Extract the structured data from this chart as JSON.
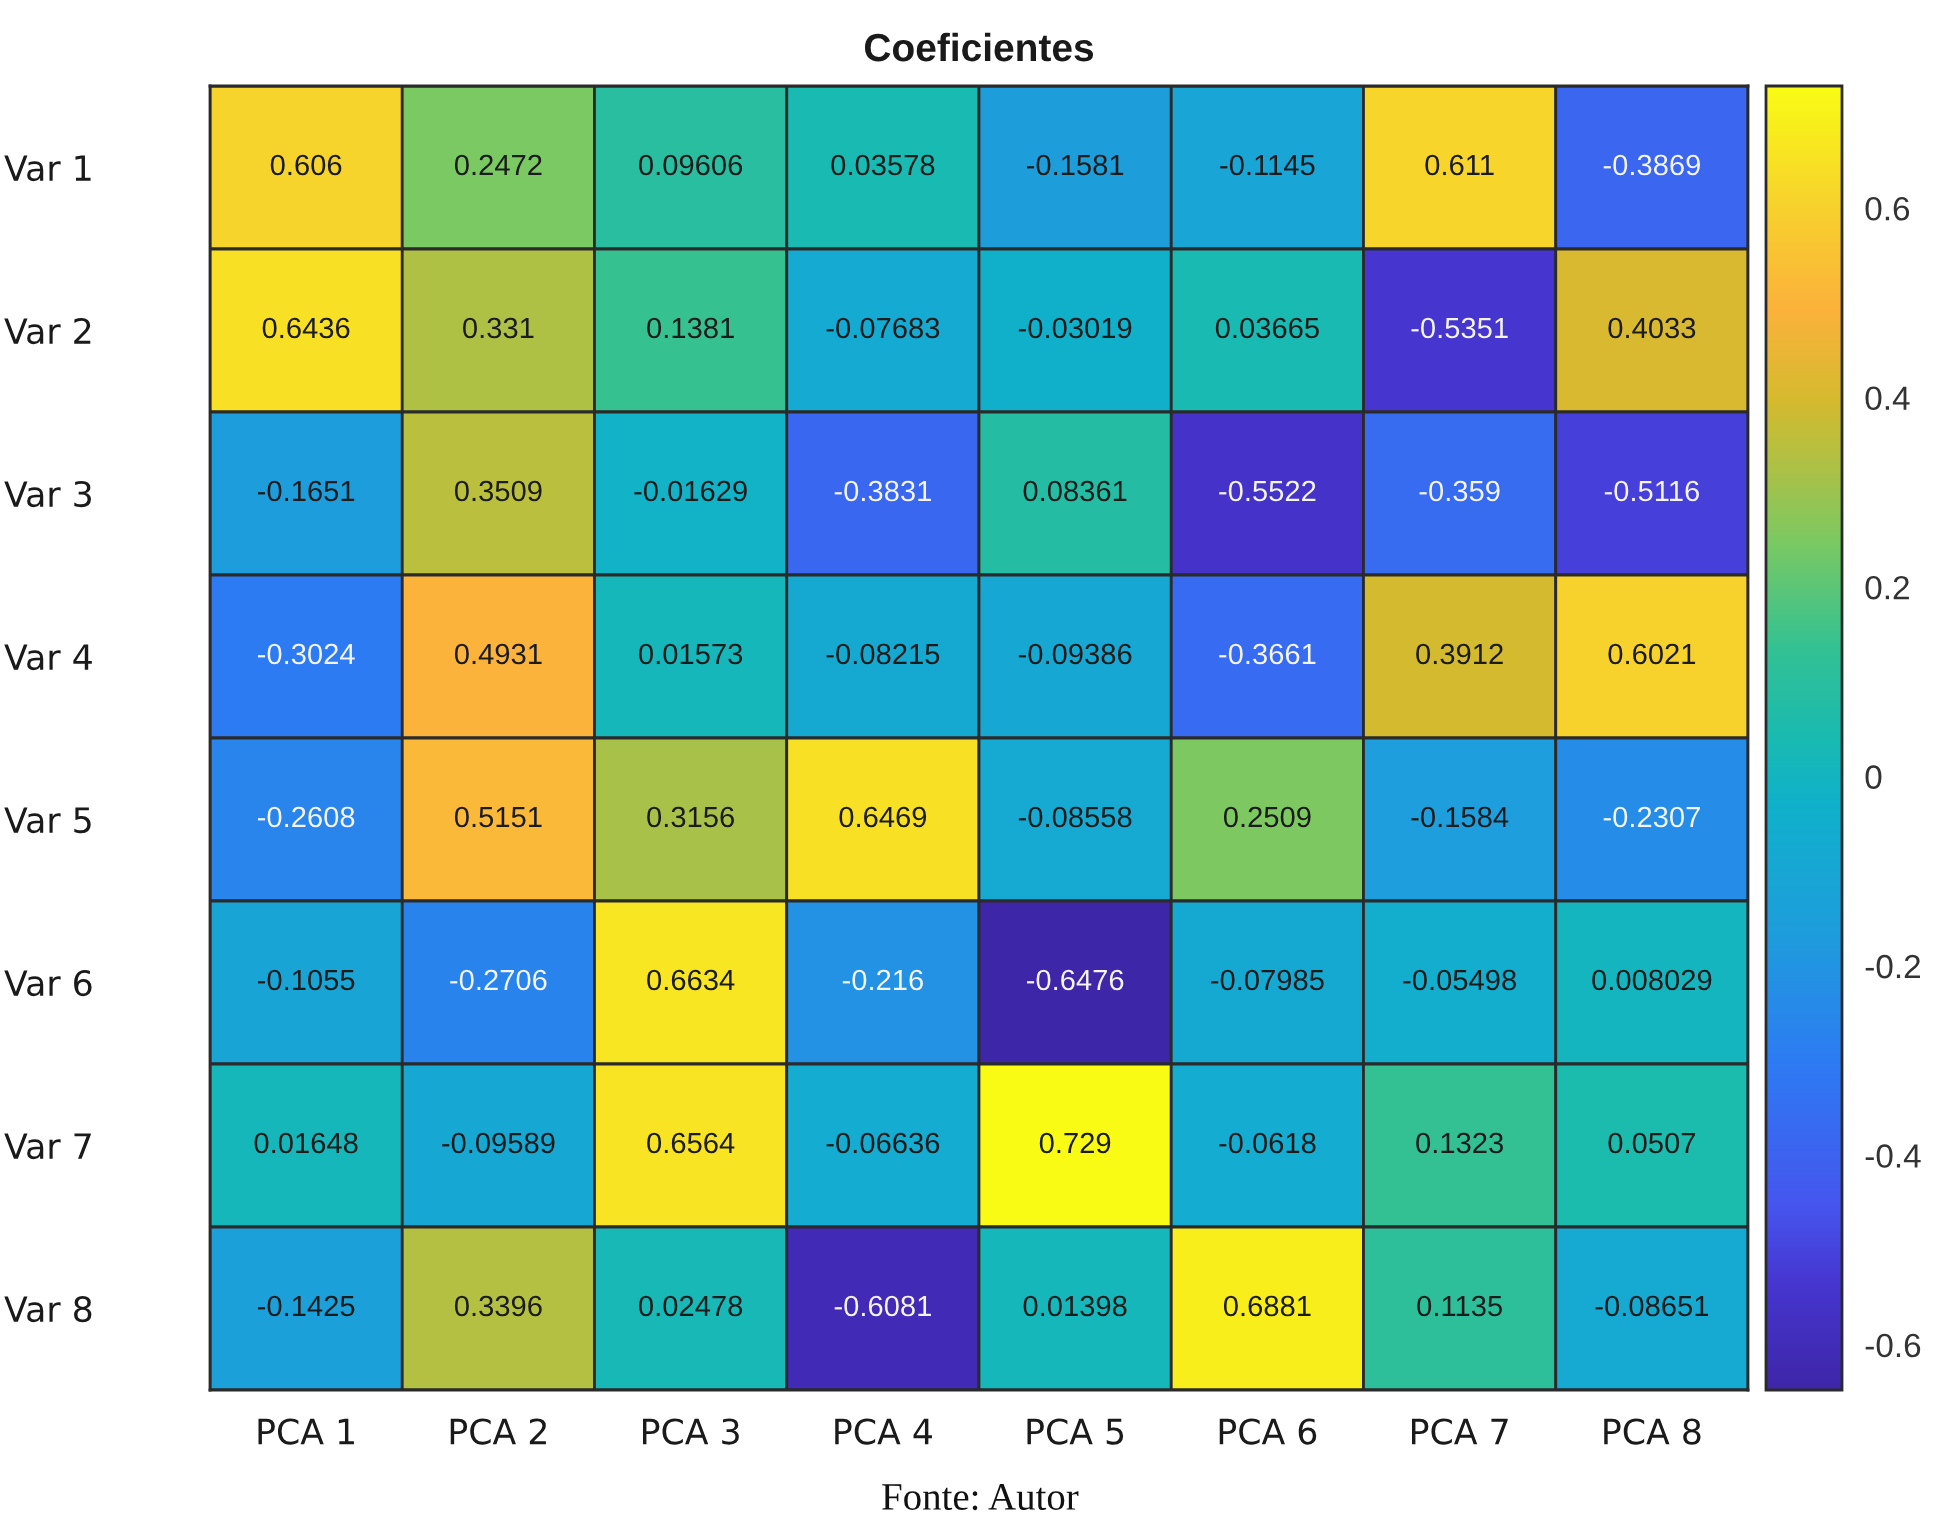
{
  "chart_data": {
    "type": "heatmap",
    "title": "Coeficientes",
    "categories": [
      "PCA 1",
      "PCA 2",
      "PCA 3",
      "PCA 4",
      "PCA 5",
      "PCA 6",
      "PCA 7",
      "PCA 8"
    ],
    "y_categories": [
      "Var 1",
      "Var 2",
      "Var 3",
      "Var 4",
      "Var 5",
      "Var 6",
      "Var 7",
      "Var 8"
    ],
    "cells": [
      [
        0.606,
        0.2472,
        0.09606,
        0.03578,
        -0.1581,
        -0.1145,
        0.611,
        -0.3869
      ],
      [
        0.6436,
        0.331,
        0.1381,
        -0.07683,
        -0.03019,
        0.03665,
        -0.5351,
        0.4033
      ],
      [
        -0.1651,
        0.3509,
        -0.01629,
        -0.3831,
        0.08361,
        -0.5522,
        -0.359,
        -0.5116
      ],
      [
        -0.3024,
        0.4931,
        0.01573,
        -0.08215,
        -0.09386,
        -0.3661,
        0.3912,
        0.6021
      ],
      [
        -0.2608,
        0.5151,
        0.3156,
        0.6469,
        -0.08558,
        0.2509,
        -0.1584,
        -0.2307
      ],
      [
        -0.1055,
        -0.2706,
        0.6634,
        -0.216,
        -0.6476,
        -0.07985,
        -0.05498,
        0.008029
      ],
      [
        0.01648,
        -0.09589,
        0.6564,
        -0.06636,
        0.729,
        -0.0618,
        0.1323,
        0.0507
      ],
      [
        -0.1425,
        0.3396,
        0.02478,
        -0.6081,
        0.01398,
        0.6881,
        0.1135,
        -0.08651
      ]
    ],
    "clim": [
      -0.6476,
      0.729
    ],
    "cticks": [
      -0.6,
      -0.4,
      -0.2,
      0,
      0.2,
      0.4,
      0.6
    ],
    "data_labels": true,
    "annotations": [
      "Fonte: Autor"
    ]
  }
}
